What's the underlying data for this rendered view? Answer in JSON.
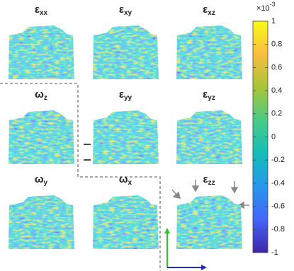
{
  "chart_data": {
    "type": "strain-maps",
    "panels": [
      {
        "symbol": "ε",
        "sub": "xx"
      },
      {
        "symbol": "ε",
        "sub": "xy"
      },
      {
        "symbol": "ε",
        "sub": "xz"
      },
      {
        "symbol": "ω",
        "sub": "z"
      },
      {
        "symbol": "ε",
        "sub": "yy"
      },
      {
        "symbol": "ε",
        "sub": "yz"
      },
      {
        "symbol": "ω",
        "sub": "y"
      },
      {
        "symbol": "ω",
        "sub": "x"
      },
      {
        "symbol": "ε",
        "sub": "zz"
      }
    ],
    "colorbar": {
      "scale_base": "×10",
      "scale_exponent": "-3",
      "ylim": [
        -1,
        1
      ],
      "yticks": [
        1,
        0.8,
        0.6,
        0.4,
        0.2,
        0,
        -0.2,
        -0.4,
        -0.6,
        -0.8,
        -1
      ],
      "colormap": [
        "#3e26a8",
        "#4465f9",
        "#2797eb",
        "#13beb8",
        "#48cb86",
        "#a8c539",
        "#f9bd3f",
        "#f9fb15"
      ]
    }
  }
}
